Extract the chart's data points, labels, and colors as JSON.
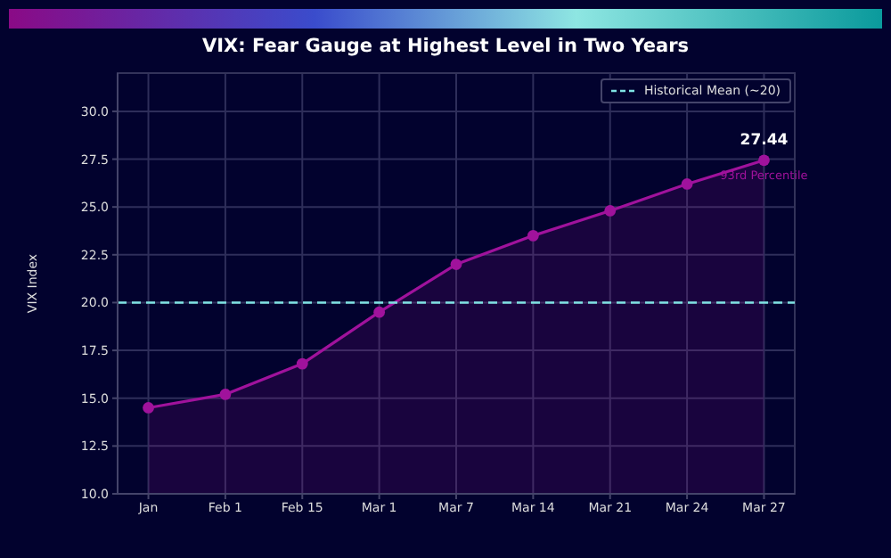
{
  "chart_data": {
    "type": "area",
    "title": "VIX: Fear Gauge at Highest Level in Two Years",
    "ylabel": "VIX Index",
    "categories": [
      "Jan",
      "Feb 1",
      "Feb 15",
      "Mar 1",
      "Mar 7",
      "Mar 14",
      "Mar 21",
      "Mar 24",
      "Mar 27"
    ],
    "series": [
      {
        "color": "#a0129c",
        "values": [
          14.5,
          15.2,
          16.8,
          19.5,
          22.0,
          23.5,
          24.8,
          26.2,
          27.44
        ],
        "value_labels": [
          null,
          null,
          null,
          null,
          null,
          null,
          null,
          null,
          "27.44"
        ]
      }
    ],
    "ylim": [
      10,
      32
    ],
    "yticks": [
      {
        "value": 10,
        "label": "10.0"
      },
      12.5,
      {
        "value": 15,
        "label": "15.0"
      },
      17.5,
      {
        "value": 20,
        "label": "20.0"
      },
      22.5,
      {
        "value": 25,
        "label": "25.0"
      },
      27.5,
      {
        "value": 30,
        "label": "30.0"
      }
    ],
    "ref_lines": [
      {
        "axis": "y",
        "value": 20,
        "label": "Historical Mean (~20)",
        "color": "#7fe3e3",
        "line_style": "dashed"
      }
    ],
    "annotations": [
      {
        "text": "93rd Percentile",
        "x": "Mar 27",
        "y": 27.44
      }
    ],
    "marker": "circle",
    "grid": true,
    "legend": "top right"
  }
}
